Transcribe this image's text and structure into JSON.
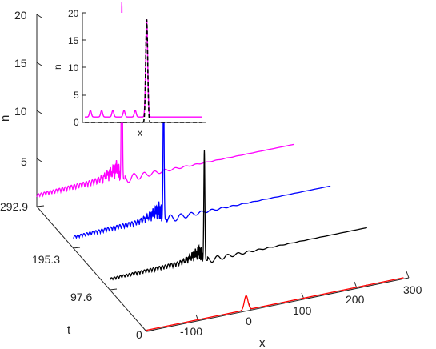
{
  "chart_data": [
    {
      "type": "line",
      "subtype": "waterfall-3d",
      "xlabel": "x",
      "ylabel": "t",
      "zlabel": "n",
      "xlim": [
        -200,
        300
      ],
      "ylim": [
        0,
        292.9
      ],
      "zlim": [
        0,
        20
      ],
      "x_ticks": [
        "-100",
        "0",
        "100",
        "200",
        "300"
      ],
      "y_ticks": [
        "0",
        "97.6",
        "195.3",
        "292.9"
      ],
      "z_ticks": [
        "5",
        "10",
        "15",
        "20"
      ],
      "grid": false,
      "series": [
        {
          "t": 0,
          "color": "#ff0000",
          "background": 0.12,
          "tail_amp": 0.0,
          "wave_amp": 0.0,
          "peak": 1.6,
          "peak_x": -10,
          "peak_width": 3.5,
          "train_amp": 0.0
        },
        {
          "t": 97.6,
          "color": "#000000",
          "background": 1.0,
          "tail_amp": 0.55,
          "wave_amp": 0.35,
          "peak": 12.5,
          "peak_x": -20,
          "peak_width": 1.0,
          "train_amp": 1.6
        },
        {
          "t": 195.3,
          "color": "#0000ff",
          "background": 1.0,
          "tail_amp": 0.65,
          "wave_amp": 0.45,
          "peak": 15.5,
          "peak_x": -28,
          "peak_width": 1.0,
          "train_amp": 1.7
        },
        {
          "t": 292.9,
          "color": "#ff00ff",
          "background": 1.0,
          "tail_amp": 0.75,
          "wave_amp": 0.5,
          "peak": 19.5,
          "peak_x": -38,
          "peak_width": 1.0,
          "train_amp": 1.8
        }
      ]
    },
    {
      "type": "line",
      "subtype": "inset",
      "xlabel": "x",
      "ylabel": "n",
      "ylim": [
        0,
        20
      ],
      "y_ticks": [
        "0",
        "5",
        "10",
        "15",
        "20"
      ],
      "series": [
        {
          "color": "#ff00ff",
          "style": "solid",
          "background": 1.0,
          "bumps": 5,
          "bump_amp": 1.2,
          "peak": 18.8
        },
        {
          "color": "#000000",
          "style": "dashed",
          "background": 0.0,
          "bumps": 0,
          "bump_amp": 0.0,
          "peak": 18.8
        }
      ]
    }
  ]
}
